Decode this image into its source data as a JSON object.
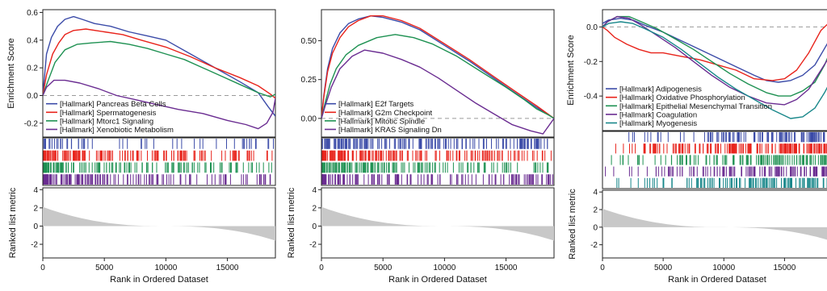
{
  "chart_data": [
    {
      "type": "line",
      "ylabel_top": "Enrichment Score",
      "ylabel_bottom": "Ranked list metric",
      "xlabel": "Rank in Ordered Dataset",
      "xlim": [
        0,
        18900
      ],
      "xticks": [
        0,
        5000,
        10000,
        15000
      ],
      "xtick_labels": [
        "0",
        "5000",
        "10000",
        "15000"
      ],
      "ylim": [
        -0.3,
        0.62
      ],
      "yticks": [
        -0.2,
        0,
        0.2,
        0.4,
        0.6
      ],
      "ytick_labels": [
        "-0.2",
        "0.0",
        "0.2",
        "0.4",
        "0.6"
      ],
      "metric_ylim": [
        -3.5,
        4.2
      ],
      "metric_yticks": [
        -2,
        0,
        2,
        4
      ],
      "metric_ytick_labels": [
        "-2",
        "0",
        "2",
        "4"
      ],
      "legend_placement": "bottom-left",
      "series": [
        {
          "name": "[Hallmark] Pancreas Beta Cells",
          "color": "#3b4ba8",
          "x": [
            0,
            300,
            700,
            1200,
            1800,
            2500,
            3200,
            4200,
            5500,
            7000,
            8500,
            10000,
            12000,
            14000,
            16000,
            17500,
            18300,
            18900
          ],
          "y": [
            0,
            0.3,
            0.42,
            0.5,
            0.55,
            0.57,
            0.55,
            0.52,
            0.5,
            0.46,
            0.43,
            0.4,
            0.3,
            0.2,
            0.1,
            0.02,
            -0.08,
            -0.15
          ],
          "hits": 55
        },
        {
          "name": "[Hallmark] Spermatogenesis",
          "color": "#e8231b",
          "x": [
            0,
            300,
            800,
            1300,
            1800,
            2500,
            3500,
            5000,
            6500,
            8000,
            10000,
            12000,
            14000,
            16000,
            17500,
            18500,
            18900
          ],
          "y": [
            0,
            0.15,
            0.3,
            0.38,
            0.44,
            0.47,
            0.48,
            0.46,
            0.44,
            0.4,
            0.35,
            0.28,
            0.2,
            0.13,
            0.07,
            0.01,
            -0.02
          ],
          "hits": 150
        },
        {
          "name": "[Hallmark] Mtorc1 Signaling",
          "color": "#1e9152",
          "x": [
            0,
            400,
            1000,
            1800,
            2800,
            4000,
            5500,
            7000,
            8500,
            10000,
            11500,
            13000,
            14500,
            16000,
            17500,
            18500,
            18900
          ],
          "y": [
            0,
            0.1,
            0.24,
            0.33,
            0.37,
            0.38,
            0.39,
            0.37,
            0.34,
            0.3,
            0.26,
            0.2,
            0.14,
            0.08,
            0.02,
            -0.01,
            0.01
          ],
          "hits": 140
        },
        {
          "name": "[Hallmark] Xenobiotic Metabolism",
          "color": "#6a2c91",
          "x": [
            0,
            300,
            900,
            1800,
            3000,
            4500,
            6000,
            7500,
            9000,
            11000,
            13000,
            15000,
            16500,
            17500,
            18200,
            18700,
            18900
          ],
          "y": [
            0,
            0.06,
            0.11,
            0.11,
            0.09,
            0.05,
            0.0,
            -0.03,
            -0.06,
            -0.1,
            -0.13,
            -0.18,
            -0.21,
            -0.24,
            -0.2,
            -0.12,
            -0.02
          ],
          "hits": 140
        }
      ]
    },
    {
      "type": "line",
      "ylabel_top": "",
      "ylabel_bottom": "Ranked list metric",
      "xlabel": "Rank in Ordered Dataset",
      "xlim": [
        0,
        18900
      ],
      "xticks": [
        0,
        5000,
        10000,
        15000
      ],
      "xtick_labels": [
        "0",
        "5000",
        "10000",
        "15000"
      ],
      "ylim": [
        -0.12,
        0.7
      ],
      "yticks": [
        0,
        0.25,
        0.5
      ],
      "ytick_labels": [
        "0.00",
        "0.25",
        "0.50"
      ],
      "metric_ylim": [
        -3.5,
        4.2
      ],
      "metric_yticks": [
        -2,
        0,
        2,
        4
      ],
      "metric_ytick_labels": [
        "-2",
        "0",
        "2",
        "4"
      ],
      "legend_placement": "bottom-left",
      "series": [
        {
          "name": "[Hallmark] E2f Targets",
          "color": "#3b4ba8",
          "x": [
            0,
            200,
            500,
            900,
            1500,
            2200,
            3000,
            4000,
            5000,
            6500,
            8000,
            10000,
            12000,
            14000,
            16000,
            17500,
            18900
          ],
          "y": [
            0,
            0.15,
            0.32,
            0.45,
            0.55,
            0.61,
            0.64,
            0.66,
            0.65,
            0.62,
            0.57,
            0.47,
            0.37,
            0.26,
            0.15,
            0.07,
            0.0
          ],
          "hits": 170
        },
        {
          "name": "[Hallmark] G2m Checkpoint",
          "color": "#e8231b",
          "x": [
            0,
            200,
            500,
            900,
            1500,
            2200,
            3000,
            4000,
            5000,
            6500,
            8000,
            10000,
            12000,
            14000,
            16000,
            17500,
            18900
          ],
          "y": [
            0,
            0.14,
            0.3,
            0.42,
            0.52,
            0.59,
            0.63,
            0.66,
            0.66,
            0.63,
            0.58,
            0.48,
            0.38,
            0.27,
            0.16,
            0.08,
            0.0
          ],
          "hits": 170
        },
        {
          "name": "[Hallmark] Mitotic Spindle",
          "color": "#1e9152",
          "x": [
            0,
            300,
            700,
            1200,
            2000,
            3000,
            4500,
            6000,
            7500,
            9000,
            11000,
            13000,
            15000,
            16500,
            17500,
            18500,
            18900
          ],
          "y": [
            0,
            0.1,
            0.22,
            0.32,
            0.41,
            0.47,
            0.52,
            0.54,
            0.52,
            0.48,
            0.4,
            0.3,
            0.2,
            0.12,
            0.06,
            0.02,
            0.0
          ],
          "hits": 150
        },
        {
          "name": "[Hallmark] KRAS Signaling Dn",
          "color": "#6a2c91",
          "x": [
            0,
            300,
            800,
            1500,
            2500,
            3500,
            5000,
            6500,
            8000,
            9500,
            11000,
            12500,
            14000,
            15500,
            17000,
            18000,
            18900
          ],
          "y": [
            0,
            0.08,
            0.2,
            0.32,
            0.4,
            0.44,
            0.42,
            0.38,
            0.33,
            0.26,
            0.18,
            0.1,
            0.03,
            -0.04,
            -0.08,
            -0.1,
            0.0
          ],
          "hits": 140
        }
      ]
    },
    {
      "type": "line",
      "ylabel_top": "Enrichment Score",
      "ylabel_bottom": "Ranked list metric",
      "xlabel": "Rank in Ordered Dataset",
      "xlim": [
        0,
        18900
      ],
      "xticks": [
        0,
        5000,
        10000,
        15000
      ],
      "xtick_labels": [
        "0",
        "5000",
        "10000",
        "15000"
      ],
      "ylim": [
        -0.6,
        0.1
      ],
      "yticks": [
        -0.4,
        -0.2,
        0
      ],
      "ytick_labels": [
        "-0.4",
        "-0.2",
        "0.0"
      ],
      "metric_ylim": [
        -3.5,
        4.2
      ],
      "metric_yticks": [
        -2,
        0,
        2,
        4
      ],
      "metric_ytick_labels": [
        "-2",
        "0",
        "2",
        "4"
      ],
      "legend_placement": "bottom-left",
      "series": [
        {
          "name": "[Hallmark] Adipogenesis",
          "color": "#3b4ba8",
          "x": [
            0,
            500,
            1500,
            2500,
            3500,
            5000,
            6500,
            8000,
            9500,
            11000,
            12500,
            13500,
            14500,
            15500,
            16500,
            17500,
            18500,
            18900
          ],
          "y": [
            0.02,
            0.04,
            0.05,
            0.04,
            0.01,
            -0.03,
            -0.08,
            -0.13,
            -0.18,
            -0.23,
            -0.28,
            -0.31,
            -0.32,
            -0.31,
            -0.28,
            -0.22,
            -0.1,
            -0.05
          ],
          "hits": 110
        },
        {
          "name": "[Hallmark] Oxidative Phosphorylation",
          "color": "#e8231b",
          "x": [
            0,
            400,
            1000,
            2000,
            3000,
            4000,
            5000,
            6500,
            8000,
            9500,
            11000,
            12500,
            14000,
            15000,
            16000,
            17000,
            18000,
            18900
          ],
          "y": [
            0,
            -0.02,
            -0.06,
            -0.1,
            -0.13,
            -0.15,
            -0.15,
            -0.17,
            -0.19,
            -0.22,
            -0.25,
            -0.3,
            -0.31,
            -0.3,
            -0.25,
            -0.15,
            -0.02,
            0.04
          ],
          "hits": 170
        },
        {
          "name": "[Hallmark] Epithelial Mesenchymal Transition",
          "color": "#1e9152",
          "x": [
            0,
            400,
            1200,
            2200,
            3200,
            4500,
            6000,
            7500,
            9000,
            10500,
            12000,
            13500,
            14500,
            15500,
            16500,
            17500,
            18300,
            18900
          ],
          "y": [
            0.0,
            0.03,
            0.06,
            0.06,
            0.03,
            -0.01,
            -0.07,
            -0.13,
            -0.2,
            -0.27,
            -0.33,
            -0.38,
            -0.4,
            -0.4,
            -0.37,
            -0.32,
            -0.22,
            -0.12
          ],
          "hits": 130
        },
        {
          "name": "[Hallmark] Coagulation",
          "color": "#6a2c91",
          "x": [
            0,
            400,
            1200,
            2200,
            3200,
            4500,
            6000,
            7500,
            9000,
            10500,
            12000,
            13500,
            15000,
            16000,
            17000,
            18000,
            18900
          ],
          "y": [
            0.0,
            0.03,
            0.06,
            0.05,
            0.01,
            -0.05,
            -0.12,
            -0.2,
            -0.28,
            -0.35,
            -0.4,
            -0.44,
            -0.45,
            -0.42,
            -0.36,
            -0.25,
            -0.15
          ],
          "hits": 120
        },
        {
          "name": "[Hallmark] Myogenesis",
          "color": "#18878a",
          "x": [
            0,
            500,
            1500,
            2500,
            3500,
            5000,
            6500,
            8000,
            9500,
            11000,
            12500,
            14000,
            15500,
            16500,
            17500,
            18300,
            18900
          ],
          "y": [
            0.0,
            0.02,
            0.03,
            0.02,
            -0.01,
            -0.06,
            -0.13,
            -0.21,
            -0.29,
            -0.36,
            -0.42,
            -0.48,
            -0.53,
            -0.52,
            -0.47,
            -0.38,
            -0.3
          ],
          "hits": 130
        }
      ]
    }
  ]
}
